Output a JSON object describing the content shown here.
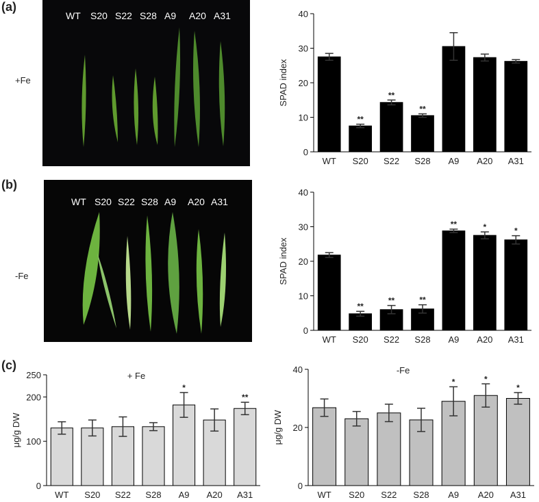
{
  "figure": {
    "panel_a": {
      "label": "(a)",
      "condition": "+Fe",
      "photo_labels": [
        "WT",
        "S20",
        "S22",
        "S28",
        "A9",
        "A20",
        "A31"
      ]
    },
    "panel_b": {
      "label": "(b)",
      "condition": "-Fe",
      "photo_labels": [
        "WT",
        "S20",
        "S22",
        "S28",
        "A9",
        "A20",
        "A31"
      ]
    },
    "panel_c": {
      "label": "(c)"
    }
  },
  "chart_data": [
    {
      "type": "bar",
      "ylabel": "SPAD index",
      "categories": [
        "WT",
        "S20",
        "S22",
        "S28",
        "A9",
        "A20",
        "A31"
      ],
      "values": [
        27.5,
        7.5,
        14.3,
        10.5,
        30.5,
        27.3,
        26.2
      ],
      "errors": [
        1.0,
        0.5,
        0.7,
        0.5,
        4.0,
        1.0,
        0.5
      ],
      "annotations": [
        null,
        "**",
        "**",
        "**",
        null,
        null,
        null
      ],
      "color": "#000000",
      "ylim": [
        0,
        40
      ],
      "yticks": [
        0,
        10,
        20,
        30,
        40
      ]
    },
    {
      "type": "bar",
      "ylabel": "SPAD index",
      "categories": [
        "WT",
        "S20",
        "S22",
        "S28",
        "A9",
        "A20",
        "A31"
      ],
      "values": [
        21.8,
        4.8,
        6.0,
        6.2,
        28.8,
        27.5,
        26.2
      ],
      "errors": [
        0.7,
        0.7,
        1.2,
        1.2,
        0.5,
        1.0,
        1.2
      ],
      "annotations": [
        null,
        "**",
        "**",
        "**",
        "**",
        "*",
        "*"
      ],
      "color": "#000000",
      "ylim": [
        0,
        40
      ],
      "yticks": [
        0,
        10,
        20,
        30,
        40
      ]
    },
    {
      "type": "bar",
      "title": "+ Fe",
      "ylabel": "μg/g DW",
      "categories": [
        "WT",
        "S20",
        "S22",
        "S28",
        "A9",
        "A20",
        "A31"
      ],
      "values": [
        130,
        130,
        133,
        133,
        182,
        148,
        174
      ],
      "errors": [
        14,
        18,
        22,
        9,
        28,
        25,
        14
      ],
      "annotations": [
        null,
        null,
        null,
        null,
        "*",
        null,
        "**"
      ],
      "color": "#d9d9d9",
      "ylim": [
        0,
        250
      ],
      "yticks": [
        0,
        100,
        200,
        250
      ]
    },
    {
      "type": "bar",
      "title": "-Fe",
      "ylabel": "μg/g DW",
      "categories": [
        "WT",
        "S20",
        "S22",
        "S28",
        "A9",
        "A20",
        "A31"
      ],
      "values": [
        26.8,
        23.0,
        25.0,
        22.6,
        29.0,
        31.0,
        30.0
      ],
      "errors": [
        3,
        2.5,
        3,
        4,
        5,
        4,
        2
      ],
      "annotations": [
        null,
        null,
        null,
        null,
        "*",
        "*",
        "*"
      ],
      "color": "#c0c0c0",
      "ylim": [
        0,
        40
      ],
      "yticks": [
        0,
        20,
        40
      ]
    }
  ]
}
